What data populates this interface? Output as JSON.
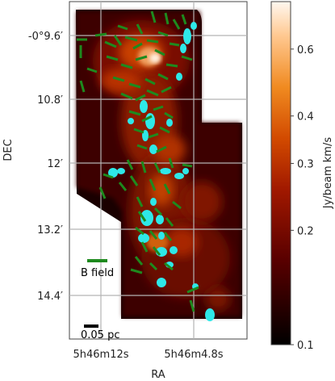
{
  "chart_data": {
    "type": "heatmap",
    "title": "",
    "xlabel": "RA",
    "ylabel": "DEC",
    "x_ticks": [
      "5h46m12s",
      "5h46m4.8s"
    ],
    "y_ticks": [
      "-0°9.6′",
      "10.8′",
      "12′",
      "13.2′",
      "14.4′"
    ],
    "grid": true,
    "colorbar": {
      "label": "Jy/beam km/s",
      "scale": "log",
      "ticks": [
        "0.6",
        "0.4",
        "0.3",
        "0.2",
        "0.1"
      ],
      "tick_values": [
        0.6,
        0.4,
        0.3,
        0.2,
        0.1
      ],
      "range": [
        0.1,
        0.8
      ],
      "colormap": "gist_heat"
    },
    "annotations": {
      "field_legend": "B field",
      "scale_bar": "0.05 pc"
    },
    "colors": {
      "field_vectors": "#1e8a1e",
      "cores": "#2ee8e8",
      "grid": "#b4b4b4"
    }
  }
}
